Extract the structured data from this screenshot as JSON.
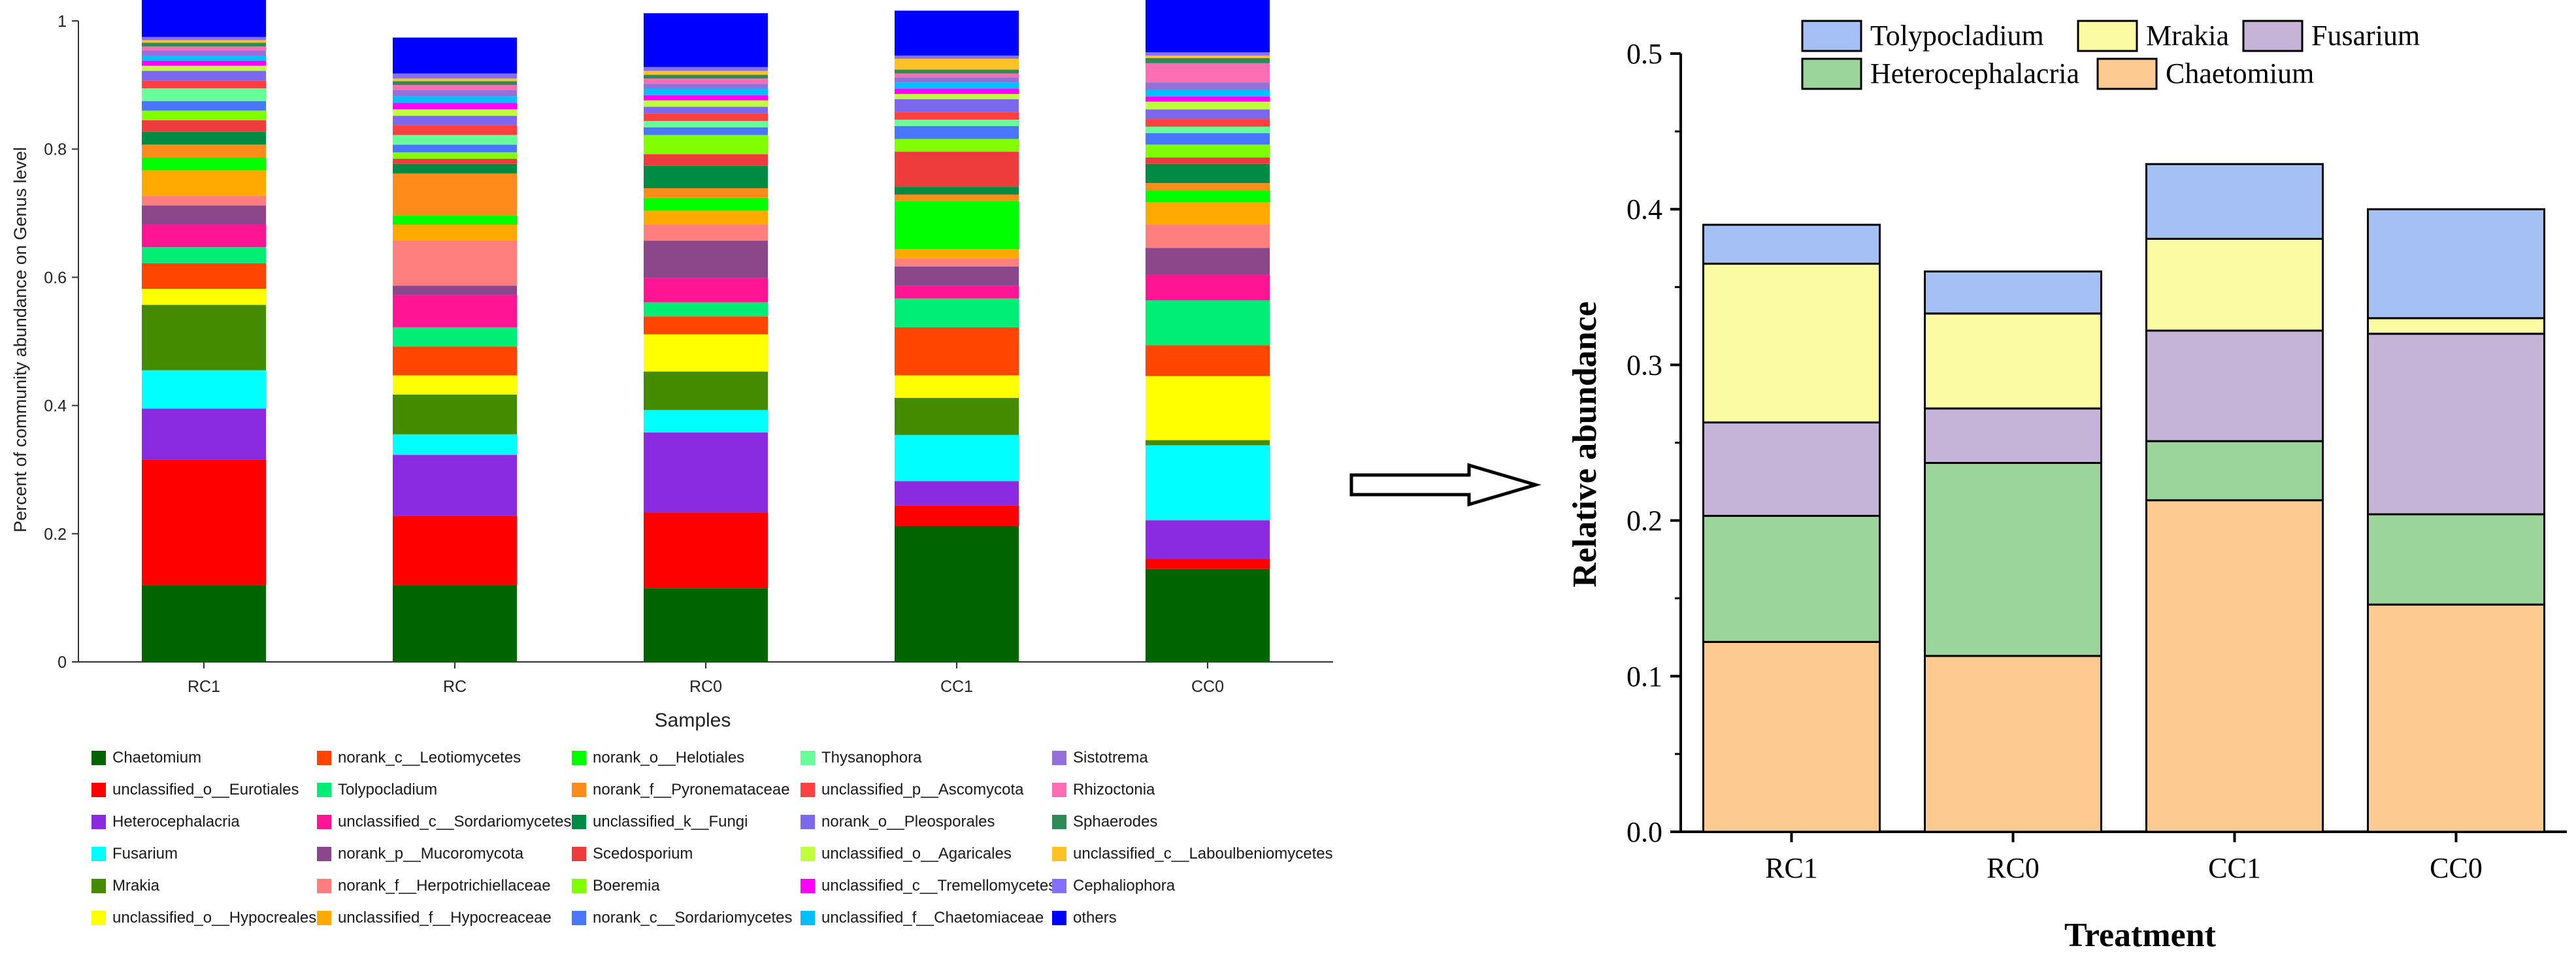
{
  "arrow": {
    "icon": "right-arrow-icon"
  },
  "chart_data": [
    {
      "type": "bar",
      "stacked": true,
      "title": "",
      "xlabel": "Samples",
      "ylabel": "Percent of community abundance on Genus level",
      "ylim": [
        0,
        1
      ],
      "yticks": [
        "0",
        "0.2",
        "0.4",
        "0.6",
        "0.8",
        "1"
      ],
      "categories": [
        "RC1",
        "RC",
        "RC0",
        "CC1",
        "CC0"
      ],
      "legend_placement": "bottom",
      "series": [
        {
          "name": "Chaetomium",
          "color": "#006400",
          "values": [
            0.12,
            0.12,
            0.115,
            0.212,
            0.145
          ]
        },
        {
          "name": "unclassified_o__Eurotiales",
          "color": "#ff0000",
          "values": [
            0.195,
            0.108,
            0.118,
            0.032,
            0.016
          ]
        },
        {
          "name": "Heterocephalacria",
          "color": "#8a2be2",
          "values": [
            0.08,
            0.095,
            0.125,
            0.038,
            0.06
          ]
        },
        {
          "name": "Fusarium",
          "color": "#00ffff",
          "values": [
            0.06,
            0.032,
            0.035,
            0.072,
            0.117
          ]
        },
        {
          "name": "Mrakia",
          "color": "#458b00",
          "values": [
            0.102,
            0.062,
            0.06,
            0.058,
            0.008
          ]
        },
        {
          "name": "unclassified_o__Hypocreales",
          "color": "#ffff00",
          "values": [
            0.025,
            0.03,
            0.058,
            0.035,
            0.1
          ]
        },
        {
          "name": "norank_c__Leotiomycetes",
          "color": "#ff4500",
          "values": [
            0.04,
            0.045,
            0.028,
            0.075,
            0.048
          ]
        },
        {
          "name": "Tolypocladium",
          "color": "#00ee76",
          "values": [
            0.025,
            0.03,
            0.022,
            0.045,
            0.07
          ]
        },
        {
          "name": "unclassified_c__Sordariomycetes",
          "color": "#ff1493",
          "values": [
            0.035,
            0.05,
            0.038,
            0.02,
            0.04
          ]
        },
        {
          "name": "norank_p__Mucoromycota",
          "color": "#8b4789",
          "values": [
            0.03,
            0.015,
            0.058,
            0.03,
            0.042
          ]
        },
        {
          "name": "norank_f__Herpotrichiellaceae",
          "color": "#ff7f7f",
          "values": [
            0.015,
            0.07,
            0.025,
            0.012,
            0.036
          ]
        },
        {
          "name": "unclassified_f__Hypocreaceae",
          "color": "#ffaa00",
          "values": [
            0.04,
            0.025,
            0.022,
            0.015,
            0.035
          ]
        },
        {
          "name": "norank_o__Helotiales",
          "color": "#00ff00",
          "values": [
            0.02,
            0.015,
            0.02,
            0.075,
            0.018
          ]
        },
        {
          "name": "norank_f__Pyronemataceae",
          "color": "#ff8c1a",
          "values": [
            0.02,
            0.065,
            0.015,
            0.01,
            0.012
          ]
        },
        {
          "name": "unclassified_k__Fungi",
          "color": "#008b45",
          "values": [
            0.02,
            0.015,
            0.035,
            0.012,
            0.03
          ]
        },
        {
          "name": "Scedosporium",
          "color": "#ee3b3b",
          "values": [
            0.018,
            0.008,
            0.018,
            0.055,
            0.01
          ]
        },
        {
          "name": "Boeremia",
          "color": "#7fff00",
          "values": [
            0.015,
            0.01,
            0.03,
            0.02,
            0.02
          ]
        },
        {
          "name": "norank_c__Sordariomycetes",
          "color": "#4876ff",
          "values": [
            0.015,
            0.012,
            0.012,
            0.02,
            0.018
          ]
        },
        {
          "name": "Thysanophora",
          "color": "#66ff99",
          "values": [
            0.02,
            0.015,
            0.01,
            0.01,
            0.01
          ]
        },
        {
          "name": "unclassified_p__Ascomycota",
          "color": "#ff4040",
          "values": [
            0.012,
            0.015,
            0.012,
            0.012,
            0.012
          ]
        },
        {
          "name": "norank_o__Pleosporales",
          "color": "#7b68ee",
          "values": [
            0.015,
            0.015,
            0.01,
            0.02,
            0.015
          ]
        },
        {
          "name": "unclassified_o__Agaricales",
          "color": "#c0ff3e",
          "values": [
            0.008,
            0.01,
            0.01,
            0.008,
            0.012
          ]
        },
        {
          "name": "unclassified_c__Tremellomycetes",
          "color": "#ff00ff",
          "values": [
            0.008,
            0.01,
            0.008,
            0.008,
            0.008
          ]
        },
        {
          "name": "unclassified_f__Chaetomiaceae",
          "color": "#00bfff",
          "values": [
            0.008,
            0.01,
            0.01,
            0.01,
            0.01
          ]
        },
        {
          "name": "Sistotrema",
          "color": "#9370db",
          "values": [
            0.008,
            0.01,
            0.008,
            0.008,
            0.012
          ]
        },
        {
          "name": "Rhizoctonia",
          "color": "#ff6eb4",
          "values": [
            0.006,
            0.008,
            0.008,
            0.006,
            0.03
          ]
        },
        {
          "name": "Sphaerodes",
          "color": "#2e8b57",
          "values": [
            0.006,
            0.006,
            0.006,
            0.006,
            0.008
          ]
        },
        {
          "name": "unclassified_c__Laboulbeniomycetes",
          "color": "#ffc125",
          "values": [
            0.004,
            0.004,
            0.006,
            0.017,
            0.004
          ]
        },
        {
          "name": "Cephaliophora",
          "color": "#8470ff",
          "values": [
            0.005,
            0.008,
            0.006,
            0.005,
            0.005
          ]
        },
        {
          "name": "others",
          "color": "#0000ff",
          "values": [
            0.065,
            0.056,
            0.084,
            0.07,
            0.088
          ]
        }
      ]
    },
    {
      "type": "bar",
      "stacked": true,
      "title": "",
      "xlabel": "Treatment",
      "ylabel": "Relative abundance",
      "ylim": [
        0,
        0.5
      ],
      "yticks": [
        "0.0",
        "0.1",
        "0.2",
        "0.3",
        "0.4",
        "0.5"
      ],
      "categories": [
        "RC1",
        "RC0",
        "CC1",
        "CC0"
      ],
      "legend_placement": "top",
      "legend_order": [
        "Tolypocladium",
        "Mrakia",
        "Fusarium",
        "Heterocephalacria",
        "Chaetomium"
      ],
      "series": [
        {
          "name": "Chaetomium",
          "color": "#fdcb91",
          "values": [
            0.122,
            0.113,
            0.213,
            0.146
          ]
        },
        {
          "name": "Heterocephalacria",
          "color": "#9bd59b",
          "values": [
            0.081,
            0.124,
            0.038,
            0.058
          ]
        },
        {
          "name": "Fusarium",
          "color": "#c5b3d8",
          "values": [
            0.06,
            0.035,
            0.071,
            0.116
          ]
        },
        {
          "name": "Mrakia",
          "color": "#fbfba4",
          "values": [
            0.102,
            0.061,
            0.059,
            0.01
          ]
        },
        {
          "name": "Tolypocladium",
          "color": "#a4c0f5",
          "values": [
            0.025,
            0.027,
            0.048,
            0.07
          ]
        }
      ]
    }
  ]
}
